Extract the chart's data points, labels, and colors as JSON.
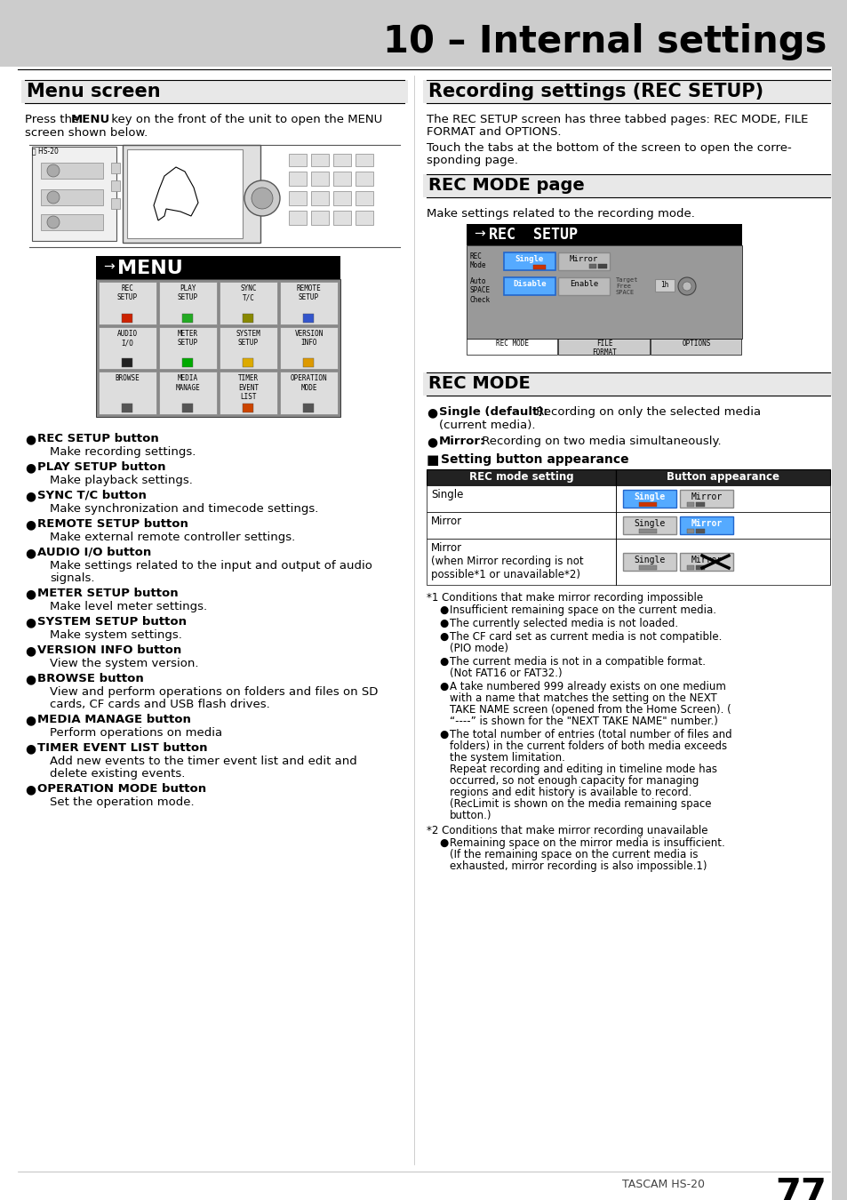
{
  "title": "10 – Internal settings",
  "page_bg": "#ffffff",
  "title_bg": "#cccccc",
  "menu_screen_heading": "Menu screen",
  "rec_setup_heading": "Recording settings (REC SETUP)",
  "rec_mode_page_heading": "REC MODE page",
  "rec_mode_heading": "REC MODE",
  "setting_button_heading": "Setting button appearance",
  "rec_setup_intro1a": "The REC SETUP screen has three tabbed pages: REC MODE, FILE",
  "rec_setup_intro1b": "FORMAT and OPTIONS.",
  "rec_setup_intro2a": "Touch the tabs at the bottom of the screen to open the corre-",
  "rec_setup_intro2b": "sponding page.",
  "rec_mode_page_intro": "Make settings related to the recording mode.",
  "menu_bullets": [
    [
      "REC SETUP button",
      [
        "Make recording settings."
      ]
    ],
    [
      "PLAY SETUP button",
      [
        "Make playback settings."
      ]
    ],
    [
      "SYNC T/C button",
      [
        "Make synchronization and timecode settings."
      ]
    ],
    [
      "REMOTE SETUP button",
      [
        "Make external remote controller settings."
      ]
    ],
    [
      "AUDIO I/O button",
      [
        "Make settings related to the input and output of audio",
        "signals."
      ]
    ],
    [
      "METER SETUP button",
      [
        "Make level meter settings."
      ]
    ],
    [
      "SYSTEM SETUP button",
      [
        "Make system settings."
      ]
    ],
    [
      "VERSION INFO button",
      [
        "View the system version."
      ]
    ],
    [
      "BROWSE button",
      [
        "View and perform operations on folders and files on SD",
        "cards, CF cards and USB flash drives."
      ]
    ],
    [
      "MEDIA MANAGE button",
      [
        "Perform operations on media"
      ]
    ],
    [
      "TIMER EVENT LIST button",
      [
        "Add new events to the timer event list and edit and",
        "delete existing events."
      ]
    ],
    [
      "OPERATION MODE button",
      [
        "Set the operation mode."
      ]
    ]
  ],
  "table_col1": "REC mode setting",
  "table_col2": "Button appearance",
  "table_rows": [
    "Single",
    "Mirror",
    "Mirror\n(when Mirror recording is not\npossible*1 or unavailable*2)"
  ],
  "fn1_header": "*1 Conditions that make mirror recording impossible",
  "fn1_bullets": [
    [
      "Insufficient remaining space on the current media."
    ],
    [
      "The currently selected media is not loaded."
    ],
    [
      "The CF card set as current media is not compatible.",
      "(PIO mode)"
    ],
    [
      "The current media is not in a compatible format.",
      "(Not FAT16 or FAT32.)"
    ],
    [
      "A take numbered 999 already exists on one medium",
      "with a name that matches the setting on the NEXT",
      "TAKE NAME screen (opened from the Home Screen). (",
      "“----” is shown for the \"NEXT TAKE NAME\" number.)"
    ],
    [
      "The total number of entries (total number of files and",
      "folders) in the current folders of both media exceeds",
      "the system limitation.",
      "Repeat recording and editing in timeline mode has",
      "occurred, so not enough capacity for managing",
      "regions and edit history is available to record.",
      "(RecLimit is shown on the media remaining space",
      "button.)"
    ]
  ],
  "fn2_header": "*2 Conditions that make mirror recording unavailable",
  "fn2_bullets": [
    [
      "Remaining space on the mirror media is insufficient.",
      "(If the remaining space on the current media is",
      "exhausted, mirror recording is also impossible.1)"
    ]
  ],
  "footer_brand": "TASCAM HS-20",
  "footer_page": "77"
}
